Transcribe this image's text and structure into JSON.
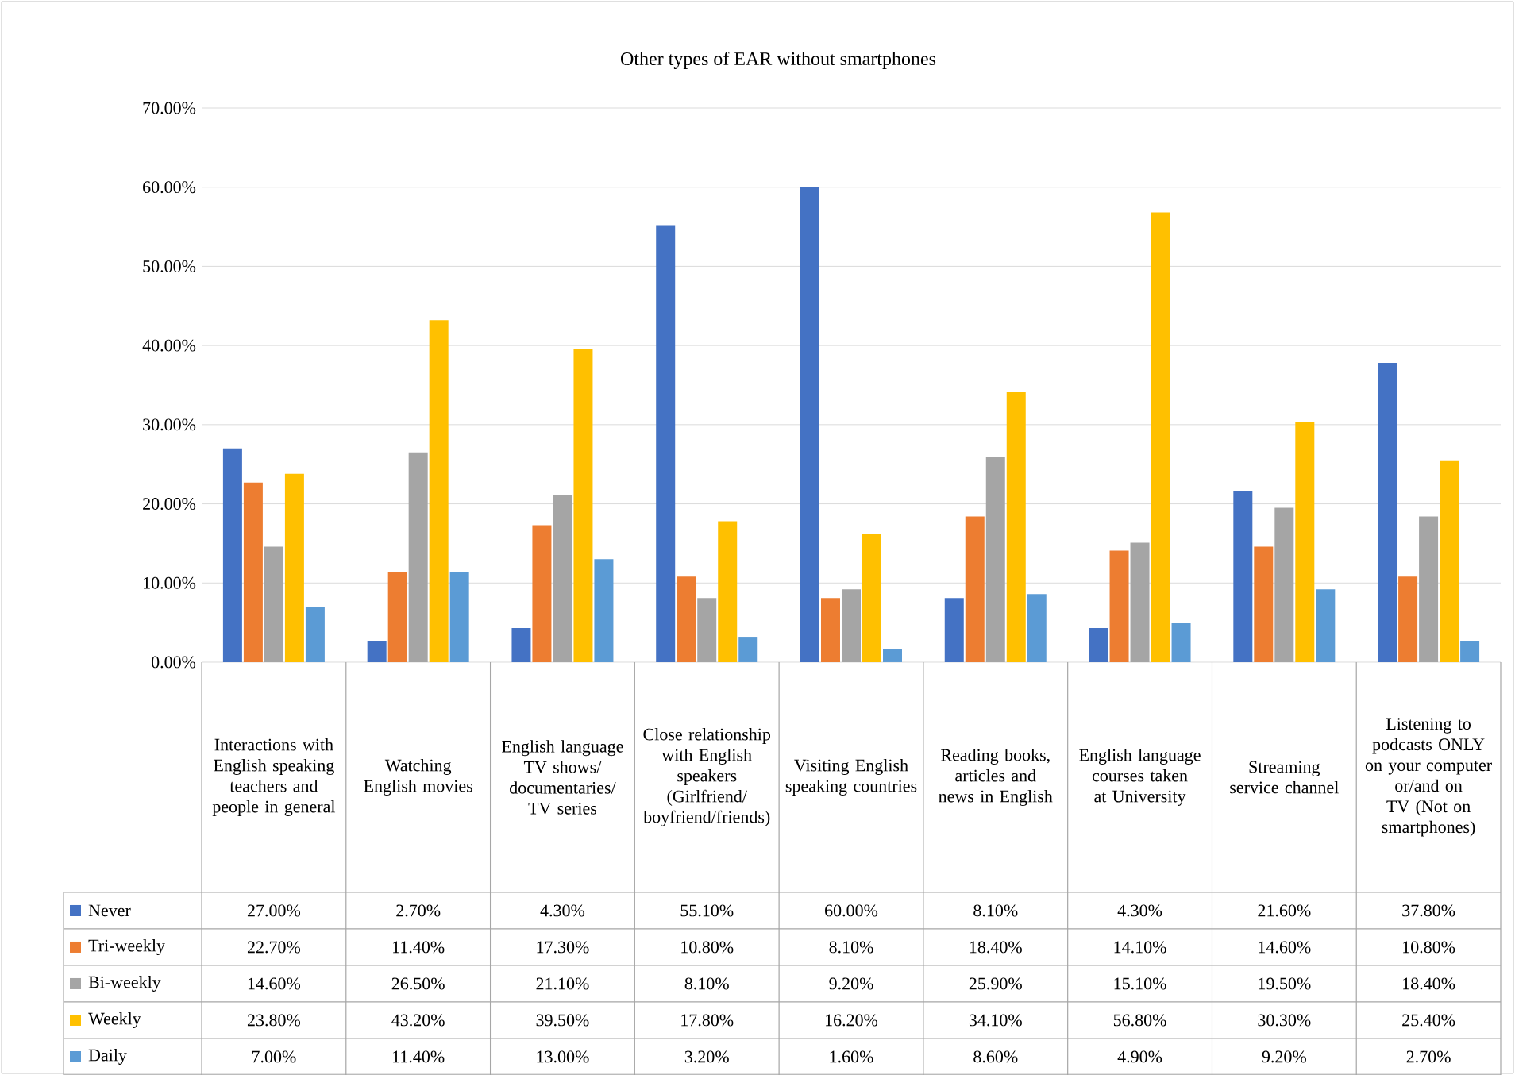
{
  "chart_data": {
    "type": "bar",
    "title": "Other types of EAR without smartphones",
    "categories": [
      "Interactions with English speaking teachers and people in general",
      "Watching English movies",
      "English language TV shows/documentaries/ TV series",
      "Close relationship with English speakers (Girlfriend/boyfriend/friends)",
      "Visiting English speaking countries",
      "Reading books, articles and news in English",
      "English language courses taken at University",
      "Streaming service channel",
      "Listening to podcasts ONLY on your computer or/and on TV (Not on smartphones)"
    ],
    "series": [
      {
        "name": "Never",
        "color": "#4472c4",
        "values": [
          27.0,
          2.7,
          4.3,
          55.1,
          60.0,
          8.1,
          4.3,
          21.6,
          37.8
        ],
        "value_labels": [
          "27.00%",
          "2.70%",
          "4.30%",
          "55.10%",
          "60.00%",
          "8.10%",
          "4.30%",
          "21.60%",
          "37.80%"
        ]
      },
      {
        "name": "Tri-weekly",
        "color": "#ed7d31",
        "values": [
          22.7,
          11.4,
          17.3,
          10.8,
          8.1,
          18.4,
          14.1,
          14.6,
          10.8
        ],
        "value_labels": [
          "22.70%",
          "11.40%",
          "17.30%",
          "10.80%",
          "8.10%",
          "18.40%",
          "14.10%",
          "14.60%",
          "10.80%"
        ]
      },
      {
        "name": "Bi-weekly",
        "color": "#a5a5a5",
        "values": [
          14.6,
          26.5,
          21.1,
          8.1,
          9.2,
          25.9,
          15.1,
          19.5,
          18.4
        ],
        "value_labels": [
          "14.60%",
          "26.50%",
          "21.10%",
          "8.10%",
          "9.20%",
          "25.90%",
          "15.10%",
          "19.50%",
          "18.40%"
        ]
      },
      {
        "name": "Weekly",
        "color": "#ffc000",
        "values": [
          23.8,
          43.2,
          39.5,
          17.8,
          16.2,
          34.1,
          56.8,
          30.3,
          25.4
        ],
        "value_labels": [
          "23.80%",
          "43.20%",
          "39.50%",
          "17.80%",
          "16.20%",
          "34.10%",
          "56.80%",
          "30.30%",
          "25.40%"
        ]
      },
      {
        "name": "Daily",
        "color": "#5b9bd5",
        "values": [
          7.0,
          11.4,
          13.0,
          3.2,
          1.6,
          8.6,
          4.9,
          9.2,
          2.7
        ],
        "value_labels": [
          "7.00%",
          "11.40%",
          "13.00%",
          "3.20%",
          "1.60%",
          "8.60%",
          "4.90%",
          "9.20%",
          "2.70%"
        ]
      }
    ],
    "ylim": [
      0,
      70
    ],
    "yticks": [
      {
        "value": 0,
        "label": "0.00%"
      },
      {
        "value": 10,
        "label": "10.00%"
      },
      {
        "value": 20,
        "label": "20.00%"
      },
      {
        "value": 30,
        "label": "30.00%"
      },
      {
        "value": 40,
        "label": "40.00%"
      },
      {
        "value": 50,
        "label": "50.00%"
      },
      {
        "value": 60,
        "label": "60.00%"
      },
      {
        "value": 70,
        "label": "70.00%"
      }
    ],
    "grid": "y",
    "legend": "bottom"
  }
}
